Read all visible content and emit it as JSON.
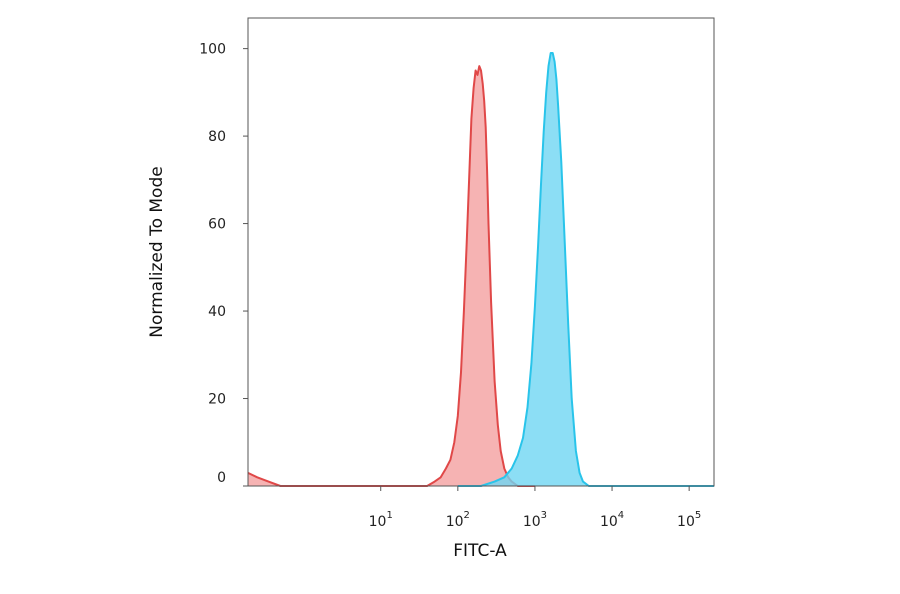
{
  "chart_data": {
    "type": "area",
    "title": "",
    "xlabel": "FITC-A",
    "ylabel": "Normalized To Mode",
    "xscale": "log",
    "xlim": [
      0.19,
      210000
    ],
    "ylim": [
      0,
      107
    ],
    "y_ticks": [
      0,
      20,
      40,
      60,
      80,
      100
    ],
    "x_ticks": [
      {
        "value": 10,
        "base": "10",
        "exp": "1"
      },
      {
        "value": 100,
        "base": "10",
        "exp": "2"
      },
      {
        "value": 1000,
        "base": "10",
        "exp": "3"
      },
      {
        "value": 10000,
        "base": "10",
        "exp": "4"
      },
      {
        "value": 100000,
        "base": "10",
        "exp": "5"
      }
    ],
    "grid": false,
    "legend": "none",
    "series": [
      {
        "color_line": "#e04848",
        "color_fill": "#f4a0a0",
        "x": [
          0.19,
          0.25,
          0.35,
          0.5,
          1,
          10,
          40,
          50,
          60,
          70,
          80,
          90,
          100,
          110,
          120,
          130,
          140,
          150,
          160,
          170,
          180,
          190,
          200,
          210,
          220,
          230,
          240,
          250,
          270,
          300,
          330,
          360,
          400,
          450,
          500,
          600,
          1000
        ],
        "y": [
          3,
          2,
          1,
          0,
          0,
          0,
          0,
          1,
          2,
          4,
          6,
          10,
          16,
          26,
          40,
          55,
          70,
          84,
          91,
          95,
          94,
          96,
          95,
          92,
          88,
          82,
          72,
          60,
          42,
          24,
          14,
          8,
          4,
          2,
          1,
          0,
          0
        ]
      },
      {
        "color_line": "#29c4ea",
        "color_fill": "#6fd6f3",
        "x": [
          100,
          200,
          300,
          400,
          500,
          600,
          700,
          800,
          900,
          1000,
          1100,
          1200,
          1300,
          1400,
          1500,
          1600,
          1700,
          1800,
          1900,
          2000,
          2200,
          2400,
          2700,
          3000,
          3400,
          3800,
          4200,
          5000,
          10000,
          210000
        ],
        "y": [
          0,
          0,
          1,
          2,
          4,
          7,
          11,
          18,
          28,
          41,
          55,
          69,
          81,
          90,
          96,
          99,
          99,
          97,
          93,
          87,
          74,
          58,
          37,
          20,
          8,
          3,
          1,
          0,
          0,
          0
        ]
      }
    ]
  }
}
